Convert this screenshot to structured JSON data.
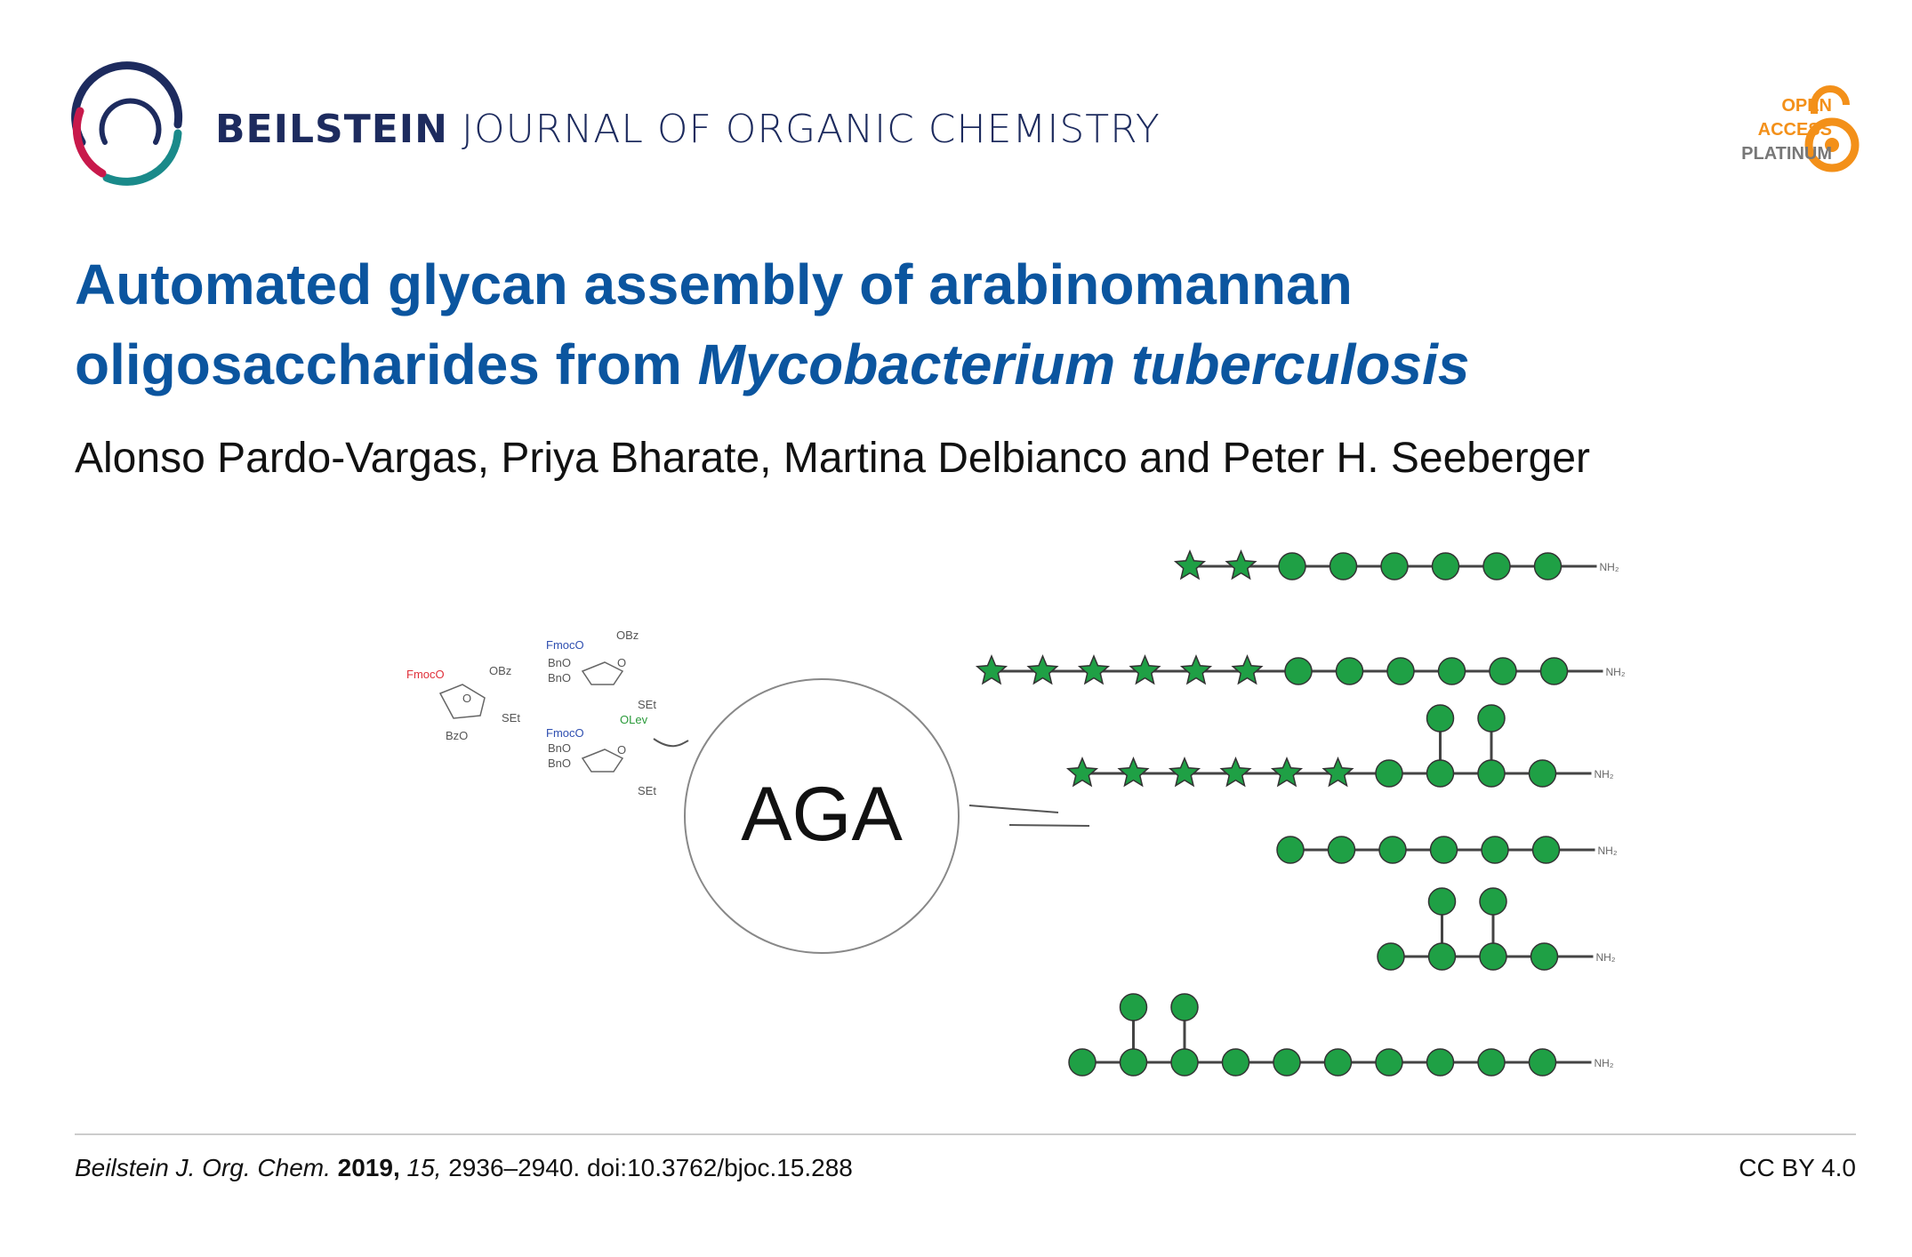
{
  "header": {
    "journal_bold": "BEILSTEIN",
    "journal_rest": "JOURNAL OF ORGANIC CHEMISTRY",
    "badge": [
      "OPEN",
      "ACCESS",
      "PLATINUM"
    ]
  },
  "article": {
    "title_line1": "Automated glycan assembly of arabinomannan",
    "title_line2": "oligosaccharides from",
    "title_italic": "Mycobacterium tuberculosis",
    "authors": "Alonso Pardo-Vargas, Priya Bharate, Martina Delbianco and Peter H. Seeberger"
  },
  "graphic": {
    "center_label": "AGA",
    "amine_label": "NH₂",
    "building_block_labels": [
      "FmocO",
      "OBz",
      "O",
      "BzO",
      "SEt",
      "FmocO",
      "OBz",
      "BnO",
      "BnO",
      "O",
      "SEt",
      "FmocO",
      "OLev",
      "BnO",
      "BnO",
      "O",
      "SEt"
    ]
  },
  "footer": {
    "journal": "Beilstein J. Org. Chem.",
    "year": "2019,",
    "volume": "15,",
    "pages_doi": "2936–2940. doi:10.3762/bjoc.15.288",
    "license": "CC BY 4.0"
  }
}
